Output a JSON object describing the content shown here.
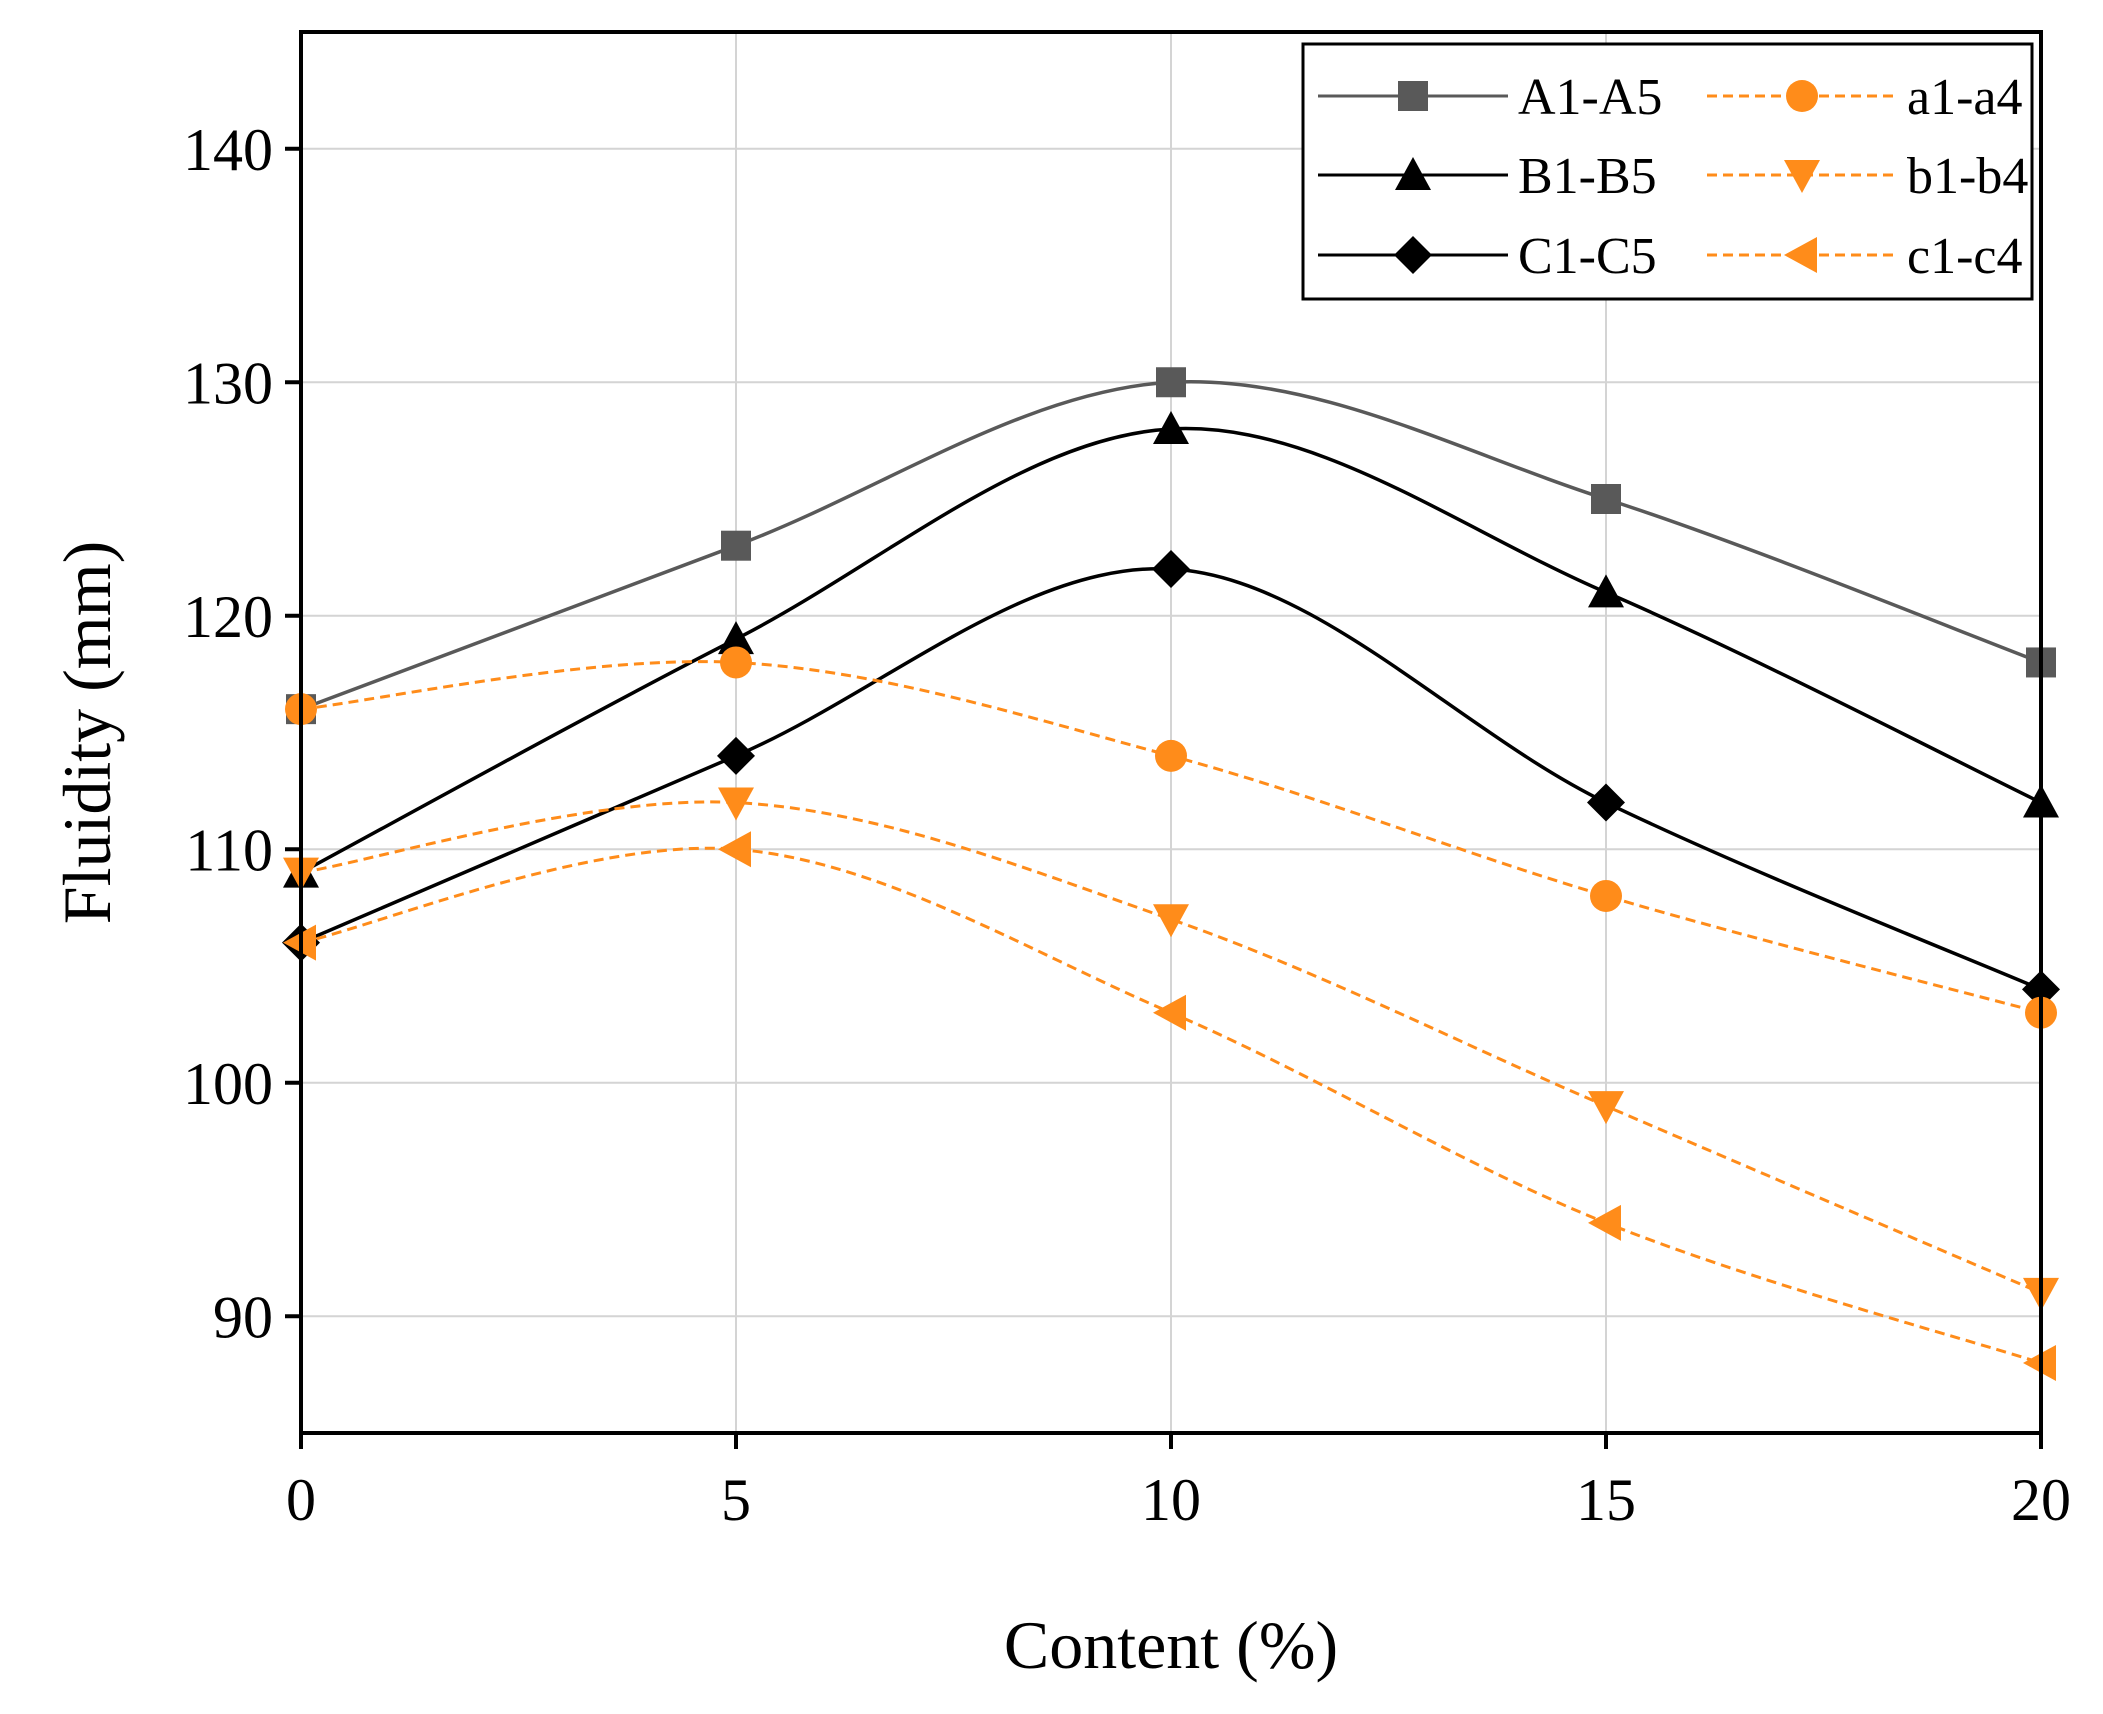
{
  "chart_data": {
    "type": "line",
    "xlabel": "Content (%)",
    "ylabel": "Fluidity (mm)",
    "xlim": [
      0,
      20
    ],
    "ylim": [
      85,
      145
    ],
    "x_ticks": [
      0,
      5,
      10,
      15,
      20
    ],
    "y_ticks": [
      90,
      100,
      110,
      120,
      130,
      140
    ],
    "grid": true,
    "legend_position": "top-right",
    "x": [
      0,
      5,
      10,
      15,
      20
    ],
    "series": [
      {
        "name": "A1-A5",
        "x": [
          0,
          5,
          10,
          15,
          20
        ],
        "values": [
          116,
          123,
          130,
          125,
          118
        ],
        "color": "#595959",
        "marker": "square",
        "dashed": false
      },
      {
        "name": "B1-B5",
        "x": [
          0,
          5,
          10,
          15,
          20
        ],
        "values": [
          109,
          119,
          128,
          121,
          112
        ],
        "color": "#000000",
        "marker": "triangle-up",
        "dashed": false
      },
      {
        "name": "C1-C5",
        "x": [
          0,
          5,
          10,
          15,
          20
        ],
        "values": [
          106,
          114,
          122,
          112,
          104
        ],
        "color": "#000000",
        "marker": "diamond",
        "dashed": false
      },
      {
        "name": "a1-a4",
        "x": [
          0,
          5,
          10,
          15,
          20
        ],
        "values": [
          116,
          118,
          114,
          108,
          103
        ],
        "color": "#FF8C1A",
        "marker": "circle",
        "dashed": true
      },
      {
        "name": "b1-b4",
        "x": [
          0,
          5,
          10,
          15,
          20
        ],
        "values": [
          109,
          112,
          107,
          99,
          91
        ],
        "color": "#FF8C1A",
        "marker": "triangle-down",
        "dashed": true
      },
      {
        "name": "c1-c4",
        "x": [
          0,
          5,
          10,
          15,
          20
        ],
        "values": [
          106,
          110,
          103,
          94,
          88
        ],
        "color": "#FF8C1A",
        "marker": "triangle-left",
        "dashed": true
      }
    ]
  }
}
